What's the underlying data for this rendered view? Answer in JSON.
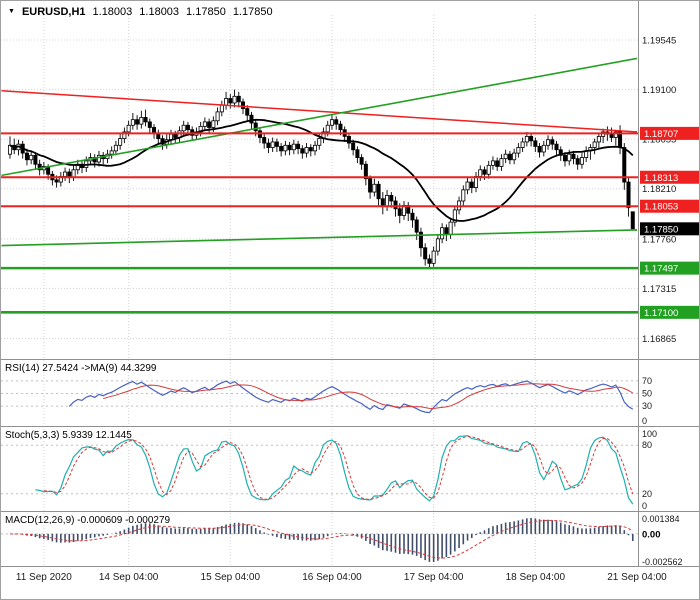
{
  "icons": {
    "symbol_dropdown": "▼"
  },
  "header": {
    "symbol": "EURUSD,H1",
    "open": "1.18003",
    "high": "1.18003",
    "low": "1.17850",
    "close": "1.17850"
  },
  "colors": {
    "grid": "#d4d4d4",
    "separator": "#909090",
    "axis_text": "#1a1a1a",
    "bull_candle": "#ffffff",
    "bear_candle": "#000000",
    "candle_outline": "#000000",
    "ma": "#000000",
    "resistance": "#ee2020",
    "support": "#22a022",
    "trend_red": "#ee2020",
    "trend_green": "#22a022",
    "current_price_bg": "#000000",
    "price_label_text": "#ffffff",
    "rsi": "#4662c3",
    "rsi_ma": "#d43c3c",
    "stoch_k": "#1fb0b0",
    "stoch_d": "#d43c3c",
    "macd_hist": "#414e6b",
    "macd_signal": "#d43c3c",
    "level_dotted": "#c0c0c0"
  },
  "chart_data": {
    "type": "candlestick",
    "title": "EURUSD,H1",
    "symbol": "EURUSD",
    "timeframe": "H1",
    "y_axis_range": [
      1.1669,
      1.1977
    ],
    "y_ticks": [
      "1.19545",
      "1.19100",
      "1.18655",
      "1.18210",
      "1.17760",
      "1.17315",
      "1.16865"
    ],
    "x_ticks": [
      {
        "i": 8,
        "label": "11 Sep 2020"
      },
      {
        "i": 28,
        "label": "14 Sep 04:00"
      },
      {
        "i": 52,
        "label": "15 Sep 04:00"
      },
      {
        "i": 76,
        "label": "16 Sep 04:00"
      },
      {
        "i": 100,
        "label": "17 Sep 04:00"
      },
      {
        "i": 124,
        "label": "18 Sep 04:00"
      },
      {
        "i": 148,
        "label": "21 Sep 04:00"
      }
    ],
    "candles": [
      [
        1.1852,
        1.1868,
        1.1848,
        1.186
      ],
      [
        1.186,
        1.1866,
        1.1852,
        1.1856
      ],
      [
        1.1856,
        1.1865,
        1.1851,
        1.1861
      ],
      [
        1.1861,
        1.1864,
        1.1848,
        1.1853
      ],
      [
        1.1853,
        1.1857,
        1.1842,
        1.1847
      ],
      [
        1.1847,
        1.1855,
        1.1843,
        1.1851
      ],
      [
        1.1851,
        1.1853,
        1.1838,
        1.1843
      ],
      [
        1.1843,
        1.1847,
        1.1833,
        1.1838
      ],
      [
        1.1838,
        1.1845,
        1.1834,
        1.1841
      ],
      [
        1.1841,
        1.1843,
        1.1829,
        1.1834
      ],
      [
        1.1834,
        1.1837,
        1.1824,
        1.1829
      ],
      [
        1.1829,
        1.1833,
        1.1822,
        1.1827
      ],
      [
        1.1827,
        1.1836,
        1.1823,
        1.1832
      ],
      [
        1.1832,
        1.184,
        1.1828,
        1.1836
      ],
      [
        1.1836,
        1.1839,
        1.1826,
        1.1831
      ],
      [
        1.1831,
        1.1842,
        1.1828,
        1.1838
      ],
      [
        1.1838,
        1.1847,
        1.1834,
        1.1843
      ],
      [
        1.1843,
        1.1846,
        1.1835,
        1.184
      ],
      [
        1.184,
        1.185,
        1.1836,
        1.1846
      ],
      [
        1.1846,
        1.1853,
        1.1842,
        1.1849
      ],
      [
        1.1849,
        1.1852,
        1.184,
        1.1845
      ],
      [
        1.1845,
        1.1855,
        1.1841,
        1.1851
      ],
      [
        1.1851,
        1.1854,
        1.1843,
        1.1848
      ],
      [
        1.1848,
        1.1856,
        1.1844,
        1.1852
      ],
      [
        1.1852,
        1.1859,
        1.1848,
        1.1855
      ],
      [
        1.1855,
        1.1864,
        1.1851,
        1.186
      ],
      [
        1.186,
        1.187,
        1.1856,
        1.1866
      ],
      [
        1.1866,
        1.1876,
        1.1862,
        1.1872
      ],
      [
        1.1872,
        1.1882,
        1.1868,
        1.1878
      ],
      [
        1.1878,
        1.1889,
        1.1874,
        1.1883
      ],
      [
        1.1883,
        1.1887,
        1.1874,
        1.1879
      ],
      [
        1.1879,
        1.1891,
        1.1875,
        1.1885
      ],
      [
        1.1885,
        1.1892,
        1.1877,
        1.1881
      ],
      [
        1.1881,
        1.1884,
        1.1871,
        1.1876
      ],
      [
        1.1876,
        1.1879,
        1.1866,
        1.1871
      ],
      [
        1.1871,
        1.1874,
        1.1861,
        1.1866
      ],
      [
        1.1866,
        1.1869,
        1.1856,
        1.1861
      ],
      [
        1.1861,
        1.187,
        1.1857,
        1.1865
      ],
      [
        1.1865,
        1.1874,
        1.1861,
        1.187
      ],
      [
        1.187,
        1.1873,
        1.1862,
        1.1867
      ],
      [
        1.1867,
        1.1877,
        1.1863,
        1.1873
      ],
      [
        1.1873,
        1.1882,
        1.1869,
        1.1878
      ],
      [
        1.1878,
        1.1881,
        1.1869,
        1.1874
      ],
      [
        1.1874,
        1.1877,
        1.1864,
        1.1869
      ],
      [
        1.1869,
        1.1876,
        1.1865,
        1.1872
      ],
      [
        1.1872,
        1.1881,
        1.1868,
        1.1877
      ],
      [
        1.1877,
        1.1885,
        1.1873,
        1.1881
      ],
      [
        1.1881,
        1.1884,
        1.1871,
        1.1876
      ],
      [
        1.1876,
        1.1886,
        1.1872,
        1.1882
      ],
      [
        1.1882,
        1.1894,
        1.1878,
        1.189
      ],
      [
        1.189,
        1.19,
        1.1886,
        1.1896
      ],
      [
        1.1896,
        1.1908,
        1.1892,
        1.1902
      ],
      [
        1.1902,
        1.1906,
        1.1893,
        1.1898
      ],
      [
        1.1898,
        1.191,
        1.1894,
        1.1904
      ],
      [
        1.1904,
        1.1908,
        1.1894,
        1.1899
      ],
      [
        1.1899,
        1.1902,
        1.1888,
        1.1893
      ],
      [
        1.1893,
        1.1896,
        1.1882,
        1.1887
      ],
      [
        1.1887,
        1.189,
        1.1875,
        1.188
      ],
      [
        1.188,
        1.1883,
        1.1868,
        1.1873
      ],
      [
        1.1873,
        1.1876,
        1.1862,
        1.1867
      ],
      [
        1.1867,
        1.187,
        1.1857,
        1.1862
      ],
      [
        1.1862,
        1.1866,
        1.1853,
        1.1858
      ],
      [
        1.1858,
        1.1867,
        1.1854,
        1.1863
      ],
      [
        1.1863,
        1.1866,
        1.1854,
        1.1859
      ],
      [
        1.1859,
        1.1862,
        1.185,
        1.1855
      ],
      [
        1.1855,
        1.1864,
        1.1851,
        1.186
      ],
      [
        1.186,
        1.1863,
        1.1851,
        1.1856
      ],
      [
        1.1856,
        1.1865,
        1.1852,
        1.1861
      ],
      [
        1.1861,
        1.1864,
        1.1852,
        1.1857
      ],
      [
        1.1857,
        1.186,
        1.1848,
        1.1853
      ],
      [
        1.1853,
        1.1862,
        1.1849,
        1.1858
      ],
      [
        1.1858,
        1.1861,
        1.185,
        1.1855
      ],
      [
        1.1855,
        1.1864,
        1.1851,
        1.186
      ],
      [
        1.186,
        1.187,
        1.1856,
        1.1866
      ],
      [
        1.1866,
        1.1876,
        1.1862,
        1.1872
      ],
      [
        1.1872,
        1.1882,
        1.1868,
        1.1878
      ],
      [
        1.1878,
        1.1888,
        1.1874,
        1.1883
      ],
      [
        1.1883,
        1.1886,
        1.1874,
        1.1879
      ],
      [
        1.1879,
        1.1882,
        1.1869,
        1.1874
      ],
      [
        1.1874,
        1.1877,
        1.1863,
        1.1868
      ],
      [
        1.1868,
        1.1871,
        1.1857,
        1.1862
      ],
      [
        1.1862,
        1.1865,
        1.1851,
        1.1856
      ],
      [
        1.1856,
        1.1859,
        1.1844,
        1.1849
      ],
      [
        1.1849,
        1.1852,
        1.1838,
        1.1843
      ],
      [
        1.1843,
        1.1846,
        1.1824,
        1.183
      ],
      [
        1.183,
        1.1833,
        1.1812,
        1.1818
      ],
      [
        1.1818,
        1.183,
        1.1814,
        1.1825
      ],
      [
        1.1825,
        1.1828,
        1.1806,
        1.1812
      ],
      [
        1.1812,
        1.1818,
        1.1798,
        1.1805
      ],
      [
        1.1805,
        1.182,
        1.1801,
        1.1815
      ],
      [
        1.1815,
        1.1818,
        1.1804,
        1.181
      ],
      [
        1.181,
        1.1814,
        1.1796,
        1.1803
      ],
      [
        1.1803,
        1.1808,
        1.179,
        1.1797
      ],
      [
        1.1797,
        1.181,
        1.1793,
        1.1806
      ],
      [
        1.1806,
        1.1809,
        1.1792,
        1.1799
      ],
      [
        1.1799,
        1.1803,
        1.1786,
        1.1793
      ],
      [
        1.1793,
        1.1796,
        1.1775,
        1.1782
      ],
      [
        1.1782,
        1.1786,
        1.176,
        1.1768
      ],
      [
        1.1768,
        1.1772,
        1.1752,
        1.1758
      ],
      [
        1.1758,
        1.1762,
        1.175,
        1.1754
      ],
      [
        1.1754,
        1.1769,
        1.1751,
        1.1765
      ],
      [
        1.1765,
        1.178,
        1.1761,
        1.1776
      ],
      [
        1.1776,
        1.179,
        1.1772,
        1.1786
      ],
      [
        1.1786,
        1.1789,
        1.1774,
        1.178
      ],
      [
        1.178,
        1.1795,
        1.1776,
        1.1791
      ],
      [
        1.1791,
        1.1806,
        1.1787,
        1.1802
      ],
      [
        1.1802,
        1.1814,
        1.1798,
        1.181
      ],
      [
        1.181,
        1.1824,
        1.1806,
        1.182
      ],
      [
        1.182,
        1.1831,
        1.1816,
        1.1827
      ],
      [
        1.1827,
        1.183,
        1.1817,
        1.1822
      ],
      [
        1.1822,
        1.1836,
        1.1818,
        1.1832
      ],
      [
        1.1832,
        1.1842,
        1.1828,
        1.1838
      ],
      [
        1.1838,
        1.1841,
        1.1829,
        1.1834
      ],
      [
        1.1834,
        1.1846,
        1.183,
        1.1842
      ],
      [
        1.1842,
        1.185,
        1.1838,
        1.1846
      ],
      [
        1.1846,
        1.1849,
        1.1837,
        1.1841
      ],
      [
        1.1841,
        1.1852,
        1.1837,
        1.1848
      ],
      [
        1.1848,
        1.1856,
        1.1844,
        1.1852
      ],
      [
        1.1852,
        1.1855,
        1.1843,
        1.1847
      ],
      [
        1.1847,
        1.1857,
        1.1843,
        1.1853
      ],
      [
        1.1853,
        1.1862,
        1.1849,
        1.1858
      ],
      [
        1.1858,
        1.1867,
        1.1854,
        1.1863
      ],
      [
        1.1863,
        1.1872,
        1.1859,
        1.1868
      ],
      [
        1.1868,
        1.1871,
        1.1859,
        1.1864
      ],
      [
        1.1864,
        1.1867,
        1.1854,
        1.1859
      ],
      [
        1.1859,
        1.1862,
        1.1849,
        1.1854
      ],
      [
        1.1854,
        1.1864,
        1.185,
        1.186
      ],
      [
        1.186,
        1.1869,
        1.1856,
        1.1865
      ],
      [
        1.1865,
        1.1868,
        1.1856,
        1.1861
      ],
      [
        1.1861,
        1.1864,
        1.1851,
        1.1856
      ],
      [
        1.1856,
        1.1859,
        1.1846,
        1.1851
      ],
      [
        1.1851,
        1.1854,
        1.1841,
        1.1846
      ],
      [
        1.1846,
        1.1856,
        1.1842,
        1.1852
      ],
      [
        1.1852,
        1.1855,
        1.1843,
        1.1848
      ],
      [
        1.1848,
        1.1851,
        1.1838,
        1.1843
      ],
      [
        1.1843,
        1.1853,
        1.1839,
        1.1849
      ],
      [
        1.1849,
        1.1859,
        1.1845,
        1.1855
      ],
      [
        1.1855,
        1.1861,
        1.1847,
        1.1858
      ],
      [
        1.1858,
        1.1866,
        1.1852,
        1.1863
      ],
      [
        1.1863,
        1.1871,
        1.1857,
        1.1868
      ],
      [
        1.1868,
        1.1875,
        1.1862,
        1.1872
      ],
      [
        1.1872,
        1.1877,
        1.1864,
        1.187
      ],
      [
        1.187,
        1.1876,
        1.1863,
        1.1867
      ],
      [
        1.1867,
        1.1874,
        1.186,
        1.1872
      ],
      [
        1.1872,
        1.1878,
        1.1852,
        1.1858
      ],
      [
        1.1858,
        1.1862,
        1.182,
        1.1827
      ],
      [
        1.1827,
        1.1831,
        1.1796,
        1.1804
      ],
      [
        1.18003,
        1.18003,
        1.1785,
        1.1785
      ]
    ],
    "overlays": {
      "ma_period": 21
    },
    "levels": [
      {
        "label": "1.18707",
        "type": "resistance"
      },
      {
        "label": "1.18313",
        "type": "resistance"
      },
      {
        "label": "1.18053",
        "type": "resistance"
      },
      {
        "label": "1.17497",
        "type": "support"
      },
      {
        "label": "1.17100",
        "type": "support"
      }
    ],
    "trendlines": [
      {
        "i1": -2,
        "p1": 1.1909,
        "i2": 148,
        "p2": 1.1872,
        "color": "trend_red",
        "width": 1.5
      },
      {
        "i1": -2,
        "p1": 1.1833,
        "i2": 148,
        "p2": 1.1938,
        "color": "trend_green",
        "width": 1.6
      },
      {
        "i1": -2,
        "p1": 1.177,
        "i2": 148,
        "p2": 1.1784,
        "color": "trend_green",
        "width": 1.6
      }
    ],
    "current_price": "1.17850",
    "indicators": {
      "rsi": {
        "label": "RSI(14) 27.5424  ->MA(9) 44.3299",
        "period": 14,
        "ma_period": 9,
        "levels": [
          70,
          50,
          30
        ],
        "axis_labels": [
          "70",
          "50",
          "30",
          "0"
        ]
      },
      "stoch": {
        "label": "Stoch(5,3,3) 5.9339 12.1445",
        "k_period": 5,
        "slowing": 3,
        "d_period": 3,
        "levels": [
          80,
          20
        ],
        "axis_labels": [
          "100",
          "80",
          "20",
          "0"
        ]
      },
      "macd": {
        "label": "MACD(12,26,9) -0.000609 -0.000279",
        "fast": 12,
        "slow": 26,
        "signal": 9,
        "axis_labels": [
          "0.001384",
          "0.00",
          "-0.002562"
        ]
      }
    }
  }
}
